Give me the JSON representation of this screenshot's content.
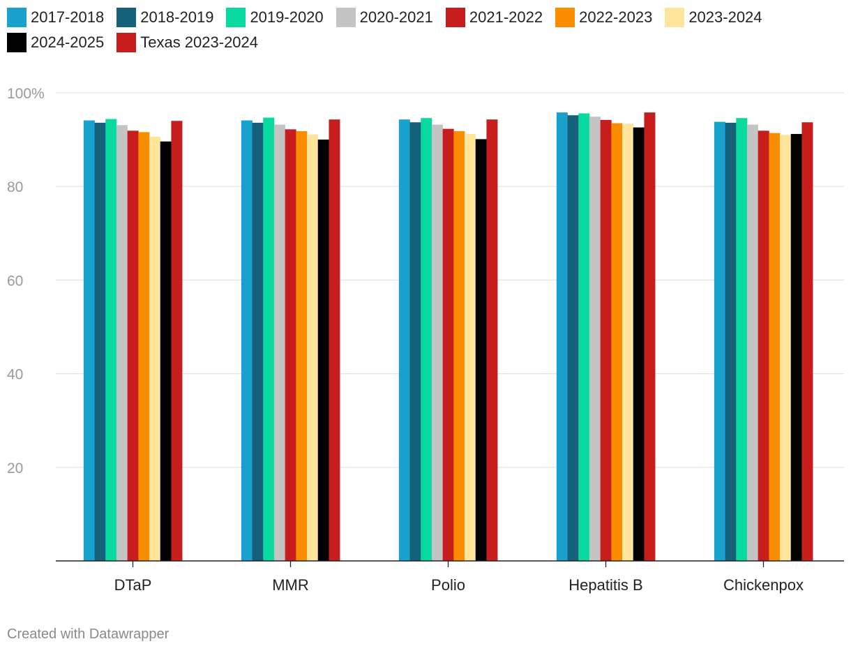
{
  "chart_data": {
    "type": "bar",
    "categories": [
      "DTaP",
      "MMR",
      "Polio",
      "Hepatitis B",
      "Chickenpox"
    ],
    "series": [
      {
        "name": "2017-2018",
        "color": "#18a1cd",
        "values": [
          94.1,
          94.1,
          94.3,
          95.8,
          93.8
        ]
      },
      {
        "name": "2018-2019",
        "color": "#15607a",
        "values": [
          93.6,
          93.6,
          93.7,
          95.2,
          93.6
        ]
      },
      {
        "name": "2019-2020",
        "color": "#09dba0",
        "values": [
          94.4,
          94.7,
          94.6,
          95.6,
          94.6
        ]
      },
      {
        "name": "2020-2021",
        "color": "#c4c4c4",
        "values": [
          93.1,
          93.2,
          93.2,
          94.9,
          93.2
        ]
      },
      {
        "name": "2021-2022",
        "color": "#c71e1d",
        "values": [
          91.9,
          92.2,
          92.3,
          94.2,
          91.9
        ]
      },
      {
        "name": "2022-2023",
        "color": "#fa8c00",
        "values": [
          91.6,
          91.8,
          91.8,
          93.5,
          91.4
        ]
      },
      {
        "name": "2023-2024",
        "color": "#ffe59c",
        "values": [
          90.6,
          91.1,
          91.2,
          93.4,
          91.0
        ]
      },
      {
        "name": "2024-2025",
        "color": "#000000",
        "values": [
          89.6,
          90.0,
          90.1,
          92.6,
          91.2
        ]
      },
      {
        "name": "Texas 2023-2024",
        "color": "#c71e1d",
        "values": [
          94.0,
          94.3,
          94.3,
          95.8,
          93.7
        ]
      }
    ],
    "yticks": [
      {
        "value": 20,
        "label": "20"
      },
      {
        "value": 40,
        "label": "40"
      },
      {
        "value": 60,
        "label": "60"
      },
      {
        "value": 80,
        "label": "80"
      },
      {
        "value": 100,
        "label": "100%"
      }
    ],
    "ylim": [
      0,
      100
    ],
    "grid": true,
    "legend_position": "top"
  },
  "footer": {
    "credit": "Created with Datawrapper"
  }
}
